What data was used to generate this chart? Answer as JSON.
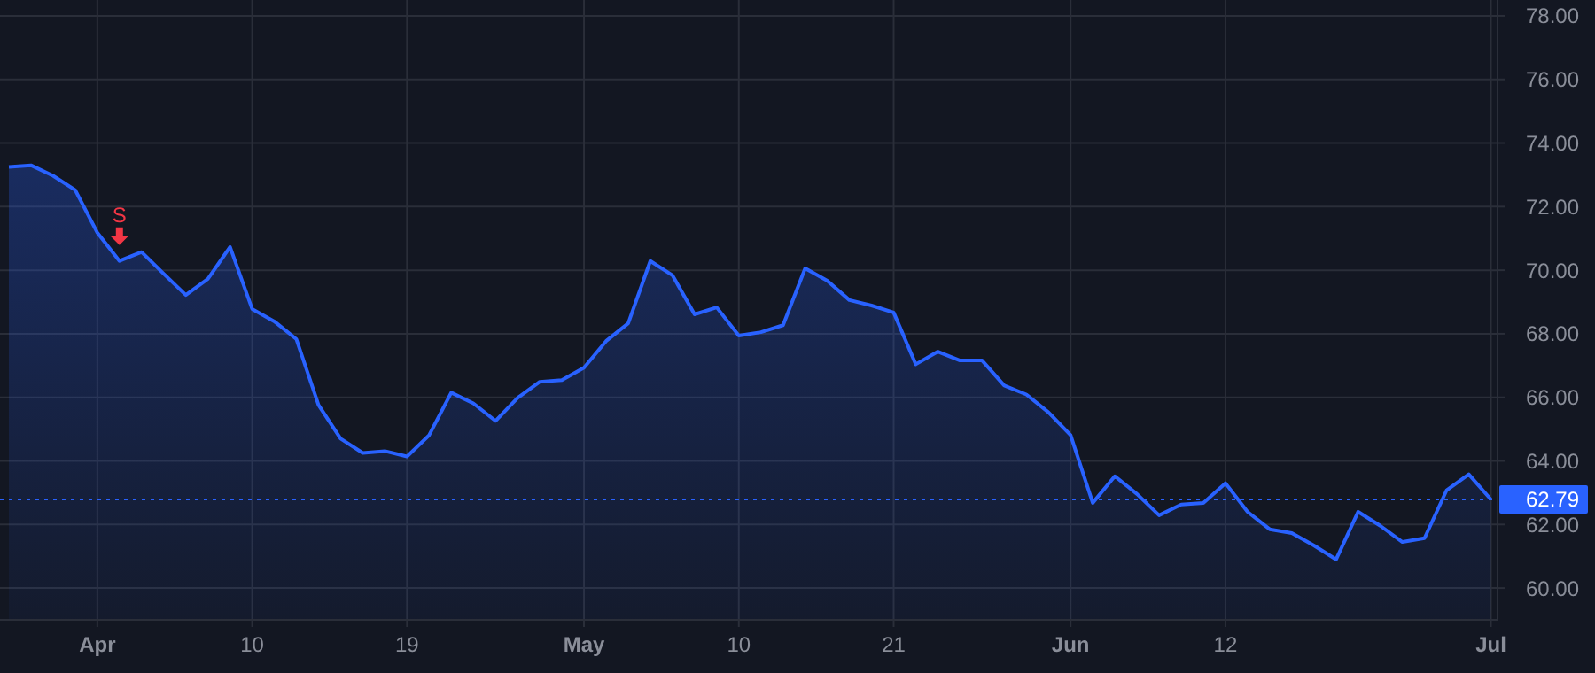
{
  "chart_data": {
    "type": "area",
    "categories": [
      null,
      null,
      null,
      null,
      "Apr",
      null,
      null,
      null,
      null,
      null,
      null,
      "10",
      null,
      null,
      null,
      null,
      null,
      null,
      "19",
      null,
      null,
      null,
      null,
      null,
      null,
      null,
      "May",
      null,
      null,
      null,
      null,
      null,
      null,
      "10",
      null,
      null,
      null,
      null,
      null,
      null,
      "21",
      null,
      null,
      null,
      null,
      null,
      null,
      null,
      "Jun",
      null,
      null,
      null,
      null,
      null,
      null,
      "12",
      null,
      null,
      null,
      null,
      null,
      null,
      null,
      null,
      null,
      null,
      null,
      "Jul"
    ],
    "series": [
      {
        "color": "#2962ff",
        "values": [
          73.25,
          73.3,
          72.97,
          72.52,
          71.18,
          70.29,
          70.57,
          69.89,
          69.22,
          69.73,
          70.73,
          68.78,
          68.39,
          67.83,
          65.76,
          64.7,
          64.25,
          64.31,
          64.14,
          64.81,
          66.15,
          65.81,
          65.26,
          65.98,
          66.49,
          66.54,
          66.93,
          67.77,
          68.33,
          70.29,
          69.84,
          68.61,
          68.83,
          67.94,
          68.05,
          68.27,
          70.06,
          69.67,
          69.06,
          68.89,
          68.67,
          67.04,
          67.44,
          67.16,
          67.16,
          66.37,
          66.09,
          65.53,
          64.81,
          62.68,
          63.52,
          62.96,
          62.29,
          62.63,
          62.68,
          63.3,
          62.4,
          61.85,
          61.73,
          61.34,
          60.9,
          62.4,
          61.96,
          61.45,
          61.57,
          63.08,
          63.58,
          62.79
        ]
      }
    ],
    "ylim": [
      59,
      78.5
    ],
    "yticks": [
      {
        "value": 60,
        "label": "60.00"
      },
      {
        "value": 62,
        "label": "62.00"
      },
      {
        "value": 64,
        "label": "64.00"
      },
      {
        "value": 66,
        "label": "66.00"
      },
      {
        "value": 68,
        "label": "68.00"
      },
      {
        "value": 70,
        "label": "70.00"
      },
      {
        "value": 72,
        "label": "72.00"
      },
      {
        "value": 74,
        "label": "74.00"
      },
      {
        "value": 76,
        "label": "76.00"
      },
      {
        "value": 78,
        "label": "78.00"
      }
    ],
    "ref_lines": [
      {
        "axis": "y",
        "value": 62.79,
        "label": "62.79",
        "color": "#2962ff",
        "line_style": "dotted"
      }
    ],
    "annotations": [
      {
        "text": "S",
        "y": 70.29
      }
    ],
    "grid": true
  }
}
